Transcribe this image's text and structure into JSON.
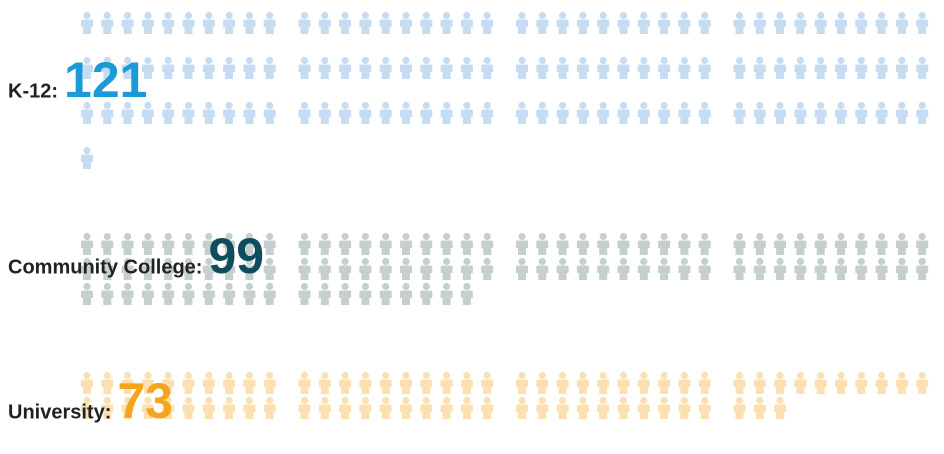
{
  "chart_data": {
    "type": "pictogram",
    "categories": [
      "K-12:",
      "Community College:",
      "University:"
    ],
    "values": [
      121,
      99,
      73
    ],
    "icon_colors": [
      "#c6dcf2",
      "#c5d0ce",
      "#fde0b2"
    ],
    "number_colors": [
      "#1a9ad6",
      "#0f4c5c",
      "#f5a41c"
    ]
  }
}
